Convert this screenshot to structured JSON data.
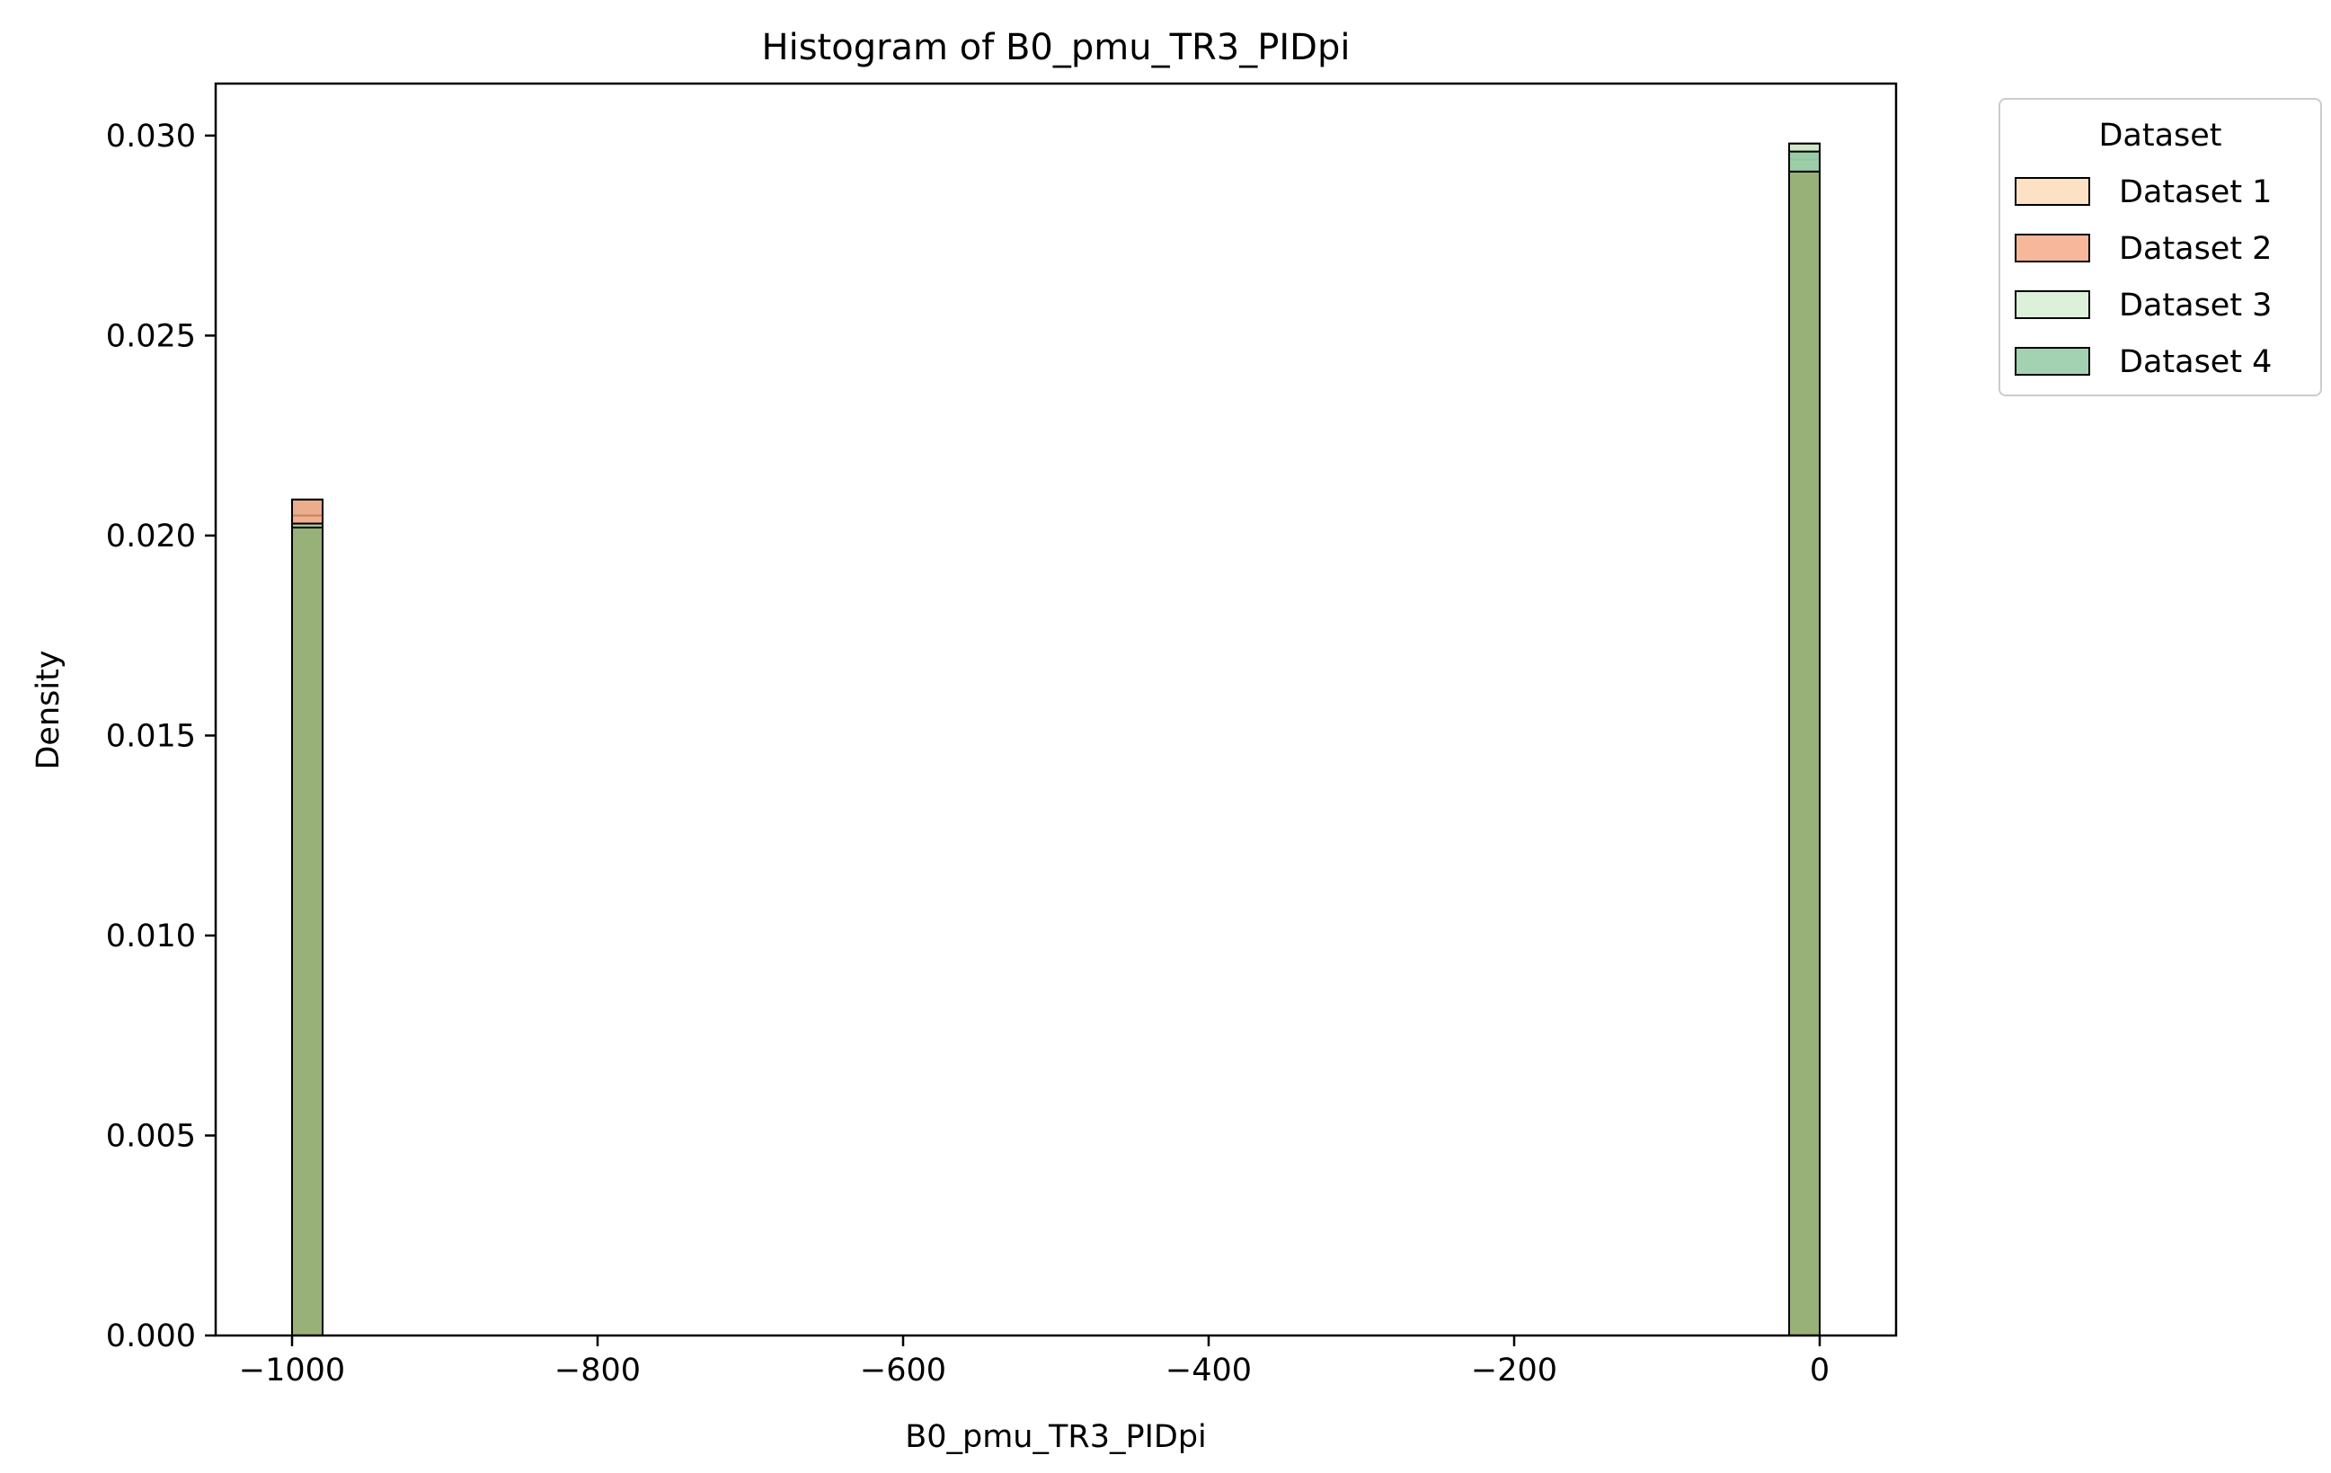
{
  "chart_data": {
    "type": "bar",
    "title": "Histogram of B0_pmu_TR3_PIDpi",
    "xlabel": "B0_pmu_TR3_PIDpi",
    "ylabel": "Density",
    "xlim": [
      -1050,
      50
    ],
    "ylim": [
      0,
      0.0313
    ],
    "xticks": [
      -1000,
      -800,
      -600,
      -400,
      -200,
      0
    ],
    "xtick_labels": [
      "−1000",
      "−800",
      "−600",
      "−400",
      "−200",
      "0"
    ],
    "yticks": [
      0,
      0.005,
      0.01,
      0.015,
      0.02,
      0.025,
      0.03
    ],
    "ytick_labels": [
      "0.000",
      "0.005",
      "0.010",
      "0.015",
      "0.020",
      "0.025",
      "0.030"
    ],
    "grid": false,
    "legend": {
      "title": "Dataset",
      "placement": "outside-top-right"
    },
    "bin_width": 20,
    "series": [
      {
        "name": "Dataset 1",
        "color": "#fdd9b5",
        "bins": [
          {
            "x": -990,
            "y": 0.0205
          },
          {
            "x": -10,
            "y": 0.0294
          }
        ]
      },
      {
        "name": "Dataset 2",
        "color": "#f4a582",
        "bins": [
          {
            "x": -990,
            "y": 0.0209
          },
          {
            "x": -10,
            "y": 0.0291
          }
        ]
      },
      {
        "name": "Dataset 3",
        "color": "#d4ecd0",
        "bins": [
          {
            "x": -990,
            "y": 0.0202
          },
          {
            "x": -10,
            "y": 0.0298
          }
        ]
      },
      {
        "name": "Dataset 4",
        "color": "#8cc7a0",
        "bins": [
          {
            "x": -990,
            "y": 0.0203
          },
          {
            "x": -10,
            "y": 0.0296
          }
        ]
      }
    ],
    "overlap_color": "#93ad72"
  }
}
